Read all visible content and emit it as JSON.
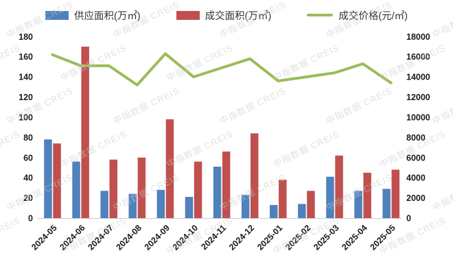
{
  "legend": [
    {
      "label": "供应面积(万㎡)",
      "type": "bar",
      "color": "#4F81BD"
    },
    {
      "label": "成交面积(万㎡)",
      "type": "bar",
      "color": "#C0504D"
    },
    {
      "label": "成交价格(元/㎡)",
      "type": "line",
      "color": "#9BBB59"
    }
  ],
  "watermark": {
    "text": "中指数据 CREIS",
    "color": "#c9c9c9"
  },
  "chart_data": {
    "type": "bar",
    "subtype": "bar+line dual axis",
    "title": "",
    "categories": [
      "2024-05",
      "2024-06",
      "2024-07",
      "2024-08",
      "2024-09",
      "2024-10",
      "2024-11",
      "2024-12",
      "2025-01",
      "2025-02",
      "2025-03",
      "2025-04",
      "2025-05"
    ],
    "series": [
      {
        "name": "供应面积(万㎡)",
        "type": "bar",
        "axis": "left",
        "color": "#4F81BD",
        "values": [
          78,
          56,
          27,
          24,
          28,
          21,
          51,
          23,
          13,
          14,
          41,
          27,
          29
        ]
      },
      {
        "name": "成交面积(万㎡)",
        "type": "bar",
        "axis": "left",
        "color": "#C0504D",
        "values": [
          74,
          170,
          58,
          60,
          98,
          56,
          66,
          84,
          38,
          27,
          62,
          45,
          48
        ]
      },
      {
        "name": "成交价格(元/㎡)",
        "type": "line",
        "axis": "right",
        "color": "#9BBB59",
        "values": [
          16200,
          15100,
          15100,
          13200,
          16300,
          14000,
          14900,
          15800,
          13600,
          14000,
          14400,
          15300,
          13400
        ]
      }
    ],
    "left_axis": {
      "min": 0,
      "max": 180,
      "step": 20,
      "ticks": [
        0,
        20,
        40,
        60,
        80,
        100,
        120,
        140,
        160,
        180
      ]
    },
    "right_axis": {
      "min": 0,
      "max": 18000,
      "step": 2000,
      "ticks": [
        0,
        2000,
        4000,
        6000,
        8000,
        10000,
        12000,
        14000,
        16000,
        18000
      ]
    },
    "xlabel": "",
    "ylabel": "",
    "legend_position": "top",
    "grid": false,
    "x_labels_rotated_degrees": 45
  }
}
